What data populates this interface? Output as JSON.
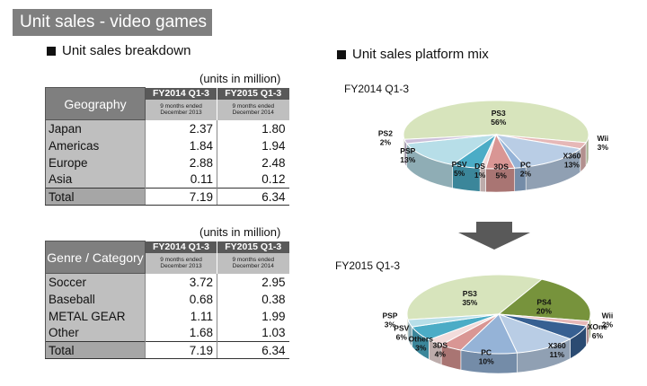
{
  "banner": "Unit sales - video games",
  "left_heading": "Unit sales breakdown",
  "right_heading": "Unit sales platform mix",
  "units_label": "(units in million)",
  "col1": {
    "name": "FY2014 Q1-3",
    "sub1": "9 months ended",
    "sub2": "December 2013"
  },
  "col2": {
    "name": "FY2015 Q1-3",
    "sub1": "9 months ended",
    "sub2": "December 2014"
  },
  "geo_header": "Geography",
  "geo_rows": [
    {
      "label": "Japan",
      "a": "2.37",
      "b": "1.80"
    },
    {
      "label": "Americas",
      "a": "1.84",
      "b": "1.94"
    },
    {
      "label": "Europe",
      "a": "2.88",
      "b": "2.48"
    },
    {
      "label": "Asia",
      "a": "0.11",
      "b": "0.12"
    },
    {
      "label": "Total",
      "a": "7.19",
      "b": "6.34"
    }
  ],
  "genre_header": "Genre / Category",
  "genre_rows": [
    {
      "label": "Soccer",
      "a": "3.72",
      "b": "2.95"
    },
    {
      "label": "Baseball",
      "a": "0.68",
      "b": "0.38"
    },
    {
      "label": "METAL GEAR",
      "a": "1.11",
      "b": "1.99"
    },
    {
      "label": "Other",
      "a": "1.68",
      "b": "1.03"
    },
    {
      "label": "Total",
      "a": "7.19",
      "b": "6.34"
    }
  ],
  "arrow_color": "#595959",
  "chart_data": [
    {
      "type": "pie",
      "title": "FY2014 Q1-3",
      "slices": [
        {
          "label": "PS3",
          "value": 56,
          "pct": "56%",
          "color": "#d7e4bc"
        },
        {
          "label": "Wii",
          "value": 3,
          "pct": "3%",
          "color": "#e6b8b7"
        },
        {
          "label": "X360",
          "value": 13,
          "pct": "13%",
          "color": "#b9cde5"
        },
        {
          "label": "PC",
          "value": 2,
          "pct": "2%",
          "color": "#95b3d7"
        },
        {
          "label": "3DS",
          "value": 5,
          "pct": "5%",
          "color": "#d99694"
        },
        {
          "label": "DS",
          "value": 1,
          "pct": "1%",
          "color": "#f2dcdb"
        },
        {
          "label": "PSV",
          "value": 5,
          "pct": "5%",
          "color": "#4bacc6"
        },
        {
          "label": "PSP",
          "value": 13,
          "pct": "13%",
          "color": "#b7dee8"
        },
        {
          "label": "PS2",
          "value": 2,
          "pct": "2%",
          "color": "#ccc0da"
        }
      ]
    },
    {
      "type": "pie",
      "title": "FY2015 Q1-3",
      "slices": [
        {
          "label": "PS3",
          "value": 35,
          "pct": "35%",
          "color": "#d7e4bc"
        },
        {
          "label": "PS4",
          "value": 20,
          "pct": "20%",
          "color": "#77933c"
        },
        {
          "label": "Wii",
          "value": 2,
          "pct": "2%",
          "color": "#e6b8b7"
        },
        {
          "label": "XOne",
          "value": 6,
          "pct": "6%",
          "color": "#376092"
        },
        {
          "label": "X360",
          "value": 11,
          "pct": "11%",
          "color": "#b9cde5"
        },
        {
          "label": "PC",
          "value": 10,
          "pct": "10%",
          "color": "#95b3d7"
        },
        {
          "label": "3DS",
          "value": 4,
          "pct": "4%",
          "color": "#d99694"
        },
        {
          "label": "Others",
          "value": 3,
          "pct": "3%",
          "color": "#f2dcdb"
        },
        {
          "label": "PSV",
          "value": 6,
          "pct": "6%",
          "color": "#4bacc6"
        },
        {
          "label": "PSP",
          "value": 3,
          "pct": "3%",
          "color": "#b7dee8"
        }
      ]
    }
  ]
}
